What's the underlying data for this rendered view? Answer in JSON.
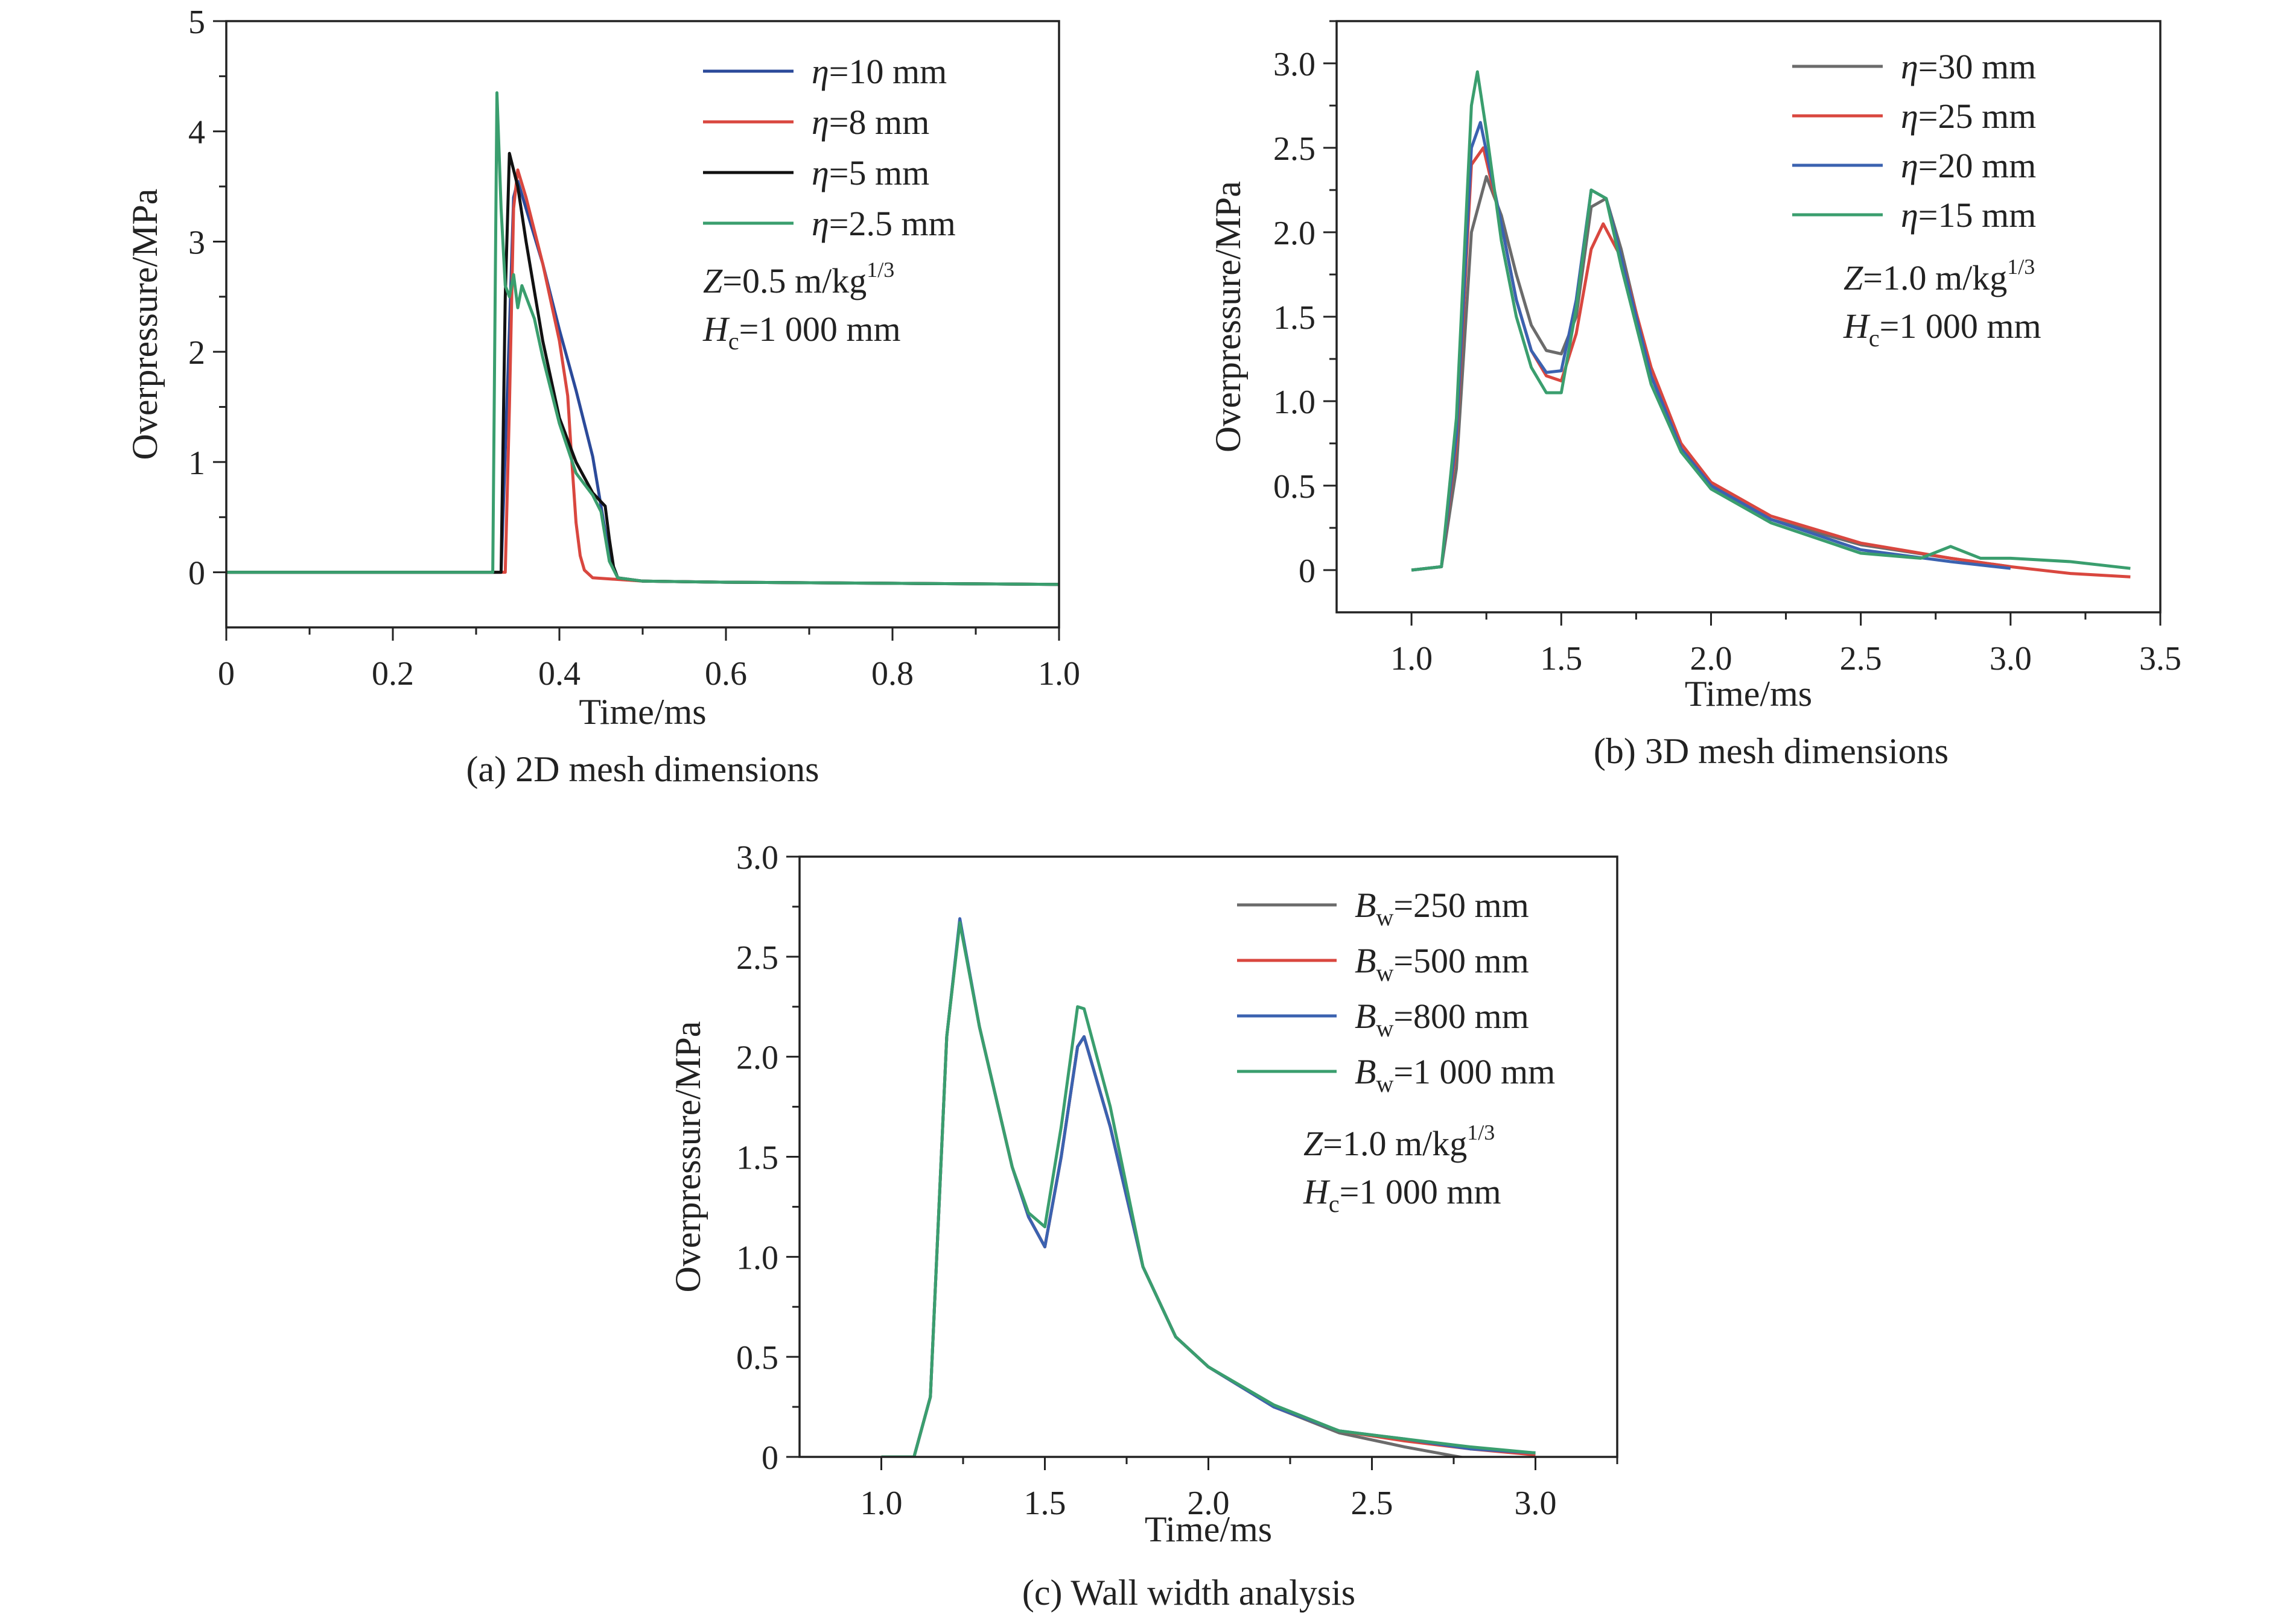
{
  "chart_data": [
    {
      "type": "line",
      "caption": "(a) 2D mesh dimensions",
      "xlabel": "Time/ms",
      "ylabel": "Overpressure/MPa",
      "xlim": [
        0,
        1.0
      ],
      "ylim": [
        -0.5,
        5
      ],
      "xticks": [
        0,
        0.2,
        0.4,
        0.6,
        0.8,
        1.0
      ],
      "xtick_labels": [
        "0",
        "0.2",
        "0.4",
        "0.6",
        "0.8",
        "1.0"
      ],
      "yticks": [
        0,
        1,
        2,
        3,
        4,
        5
      ],
      "ytick_labels": [
        "0",
        "1",
        "2",
        "3",
        "4",
        "5"
      ],
      "legend_position": "top-right",
      "annotations": [
        {
          "var": "Z",
          "sub": "",
          "text": "=0.5 m/kg",
          "sup": "1/3"
        },
        {
          "var": "H",
          "sub": "c",
          "text": "=1 000 mm",
          "sup": ""
        }
      ],
      "series": [
        {
          "var": "η",
          "sub": "",
          "label": "=10 mm",
          "color": "#2b4a9a",
          "x": [
            0,
            0.3,
            0.33,
            0.34,
            0.345,
            0.35,
            0.36,
            0.38,
            0.4,
            0.42,
            0.43,
            0.44,
            0.45,
            0.46,
            0.47,
            0.5,
            0.6,
            0.8,
            1.0
          ],
          "y": [
            0,
            0,
            0,
            2.2,
            3.4,
            3.55,
            3.3,
            2.8,
            2.2,
            1.65,
            1.35,
            1.05,
            0.6,
            0.15,
            -0.05,
            -0.08,
            -0.09,
            -0.1,
            -0.11
          ]
        },
        {
          "var": "η",
          "sub": "",
          "label": "=8 mm",
          "color": "#d9473f",
          "x": [
            0,
            0.3,
            0.335,
            0.34,
            0.345,
            0.35,
            0.36,
            0.38,
            0.4,
            0.41,
            0.415,
            0.42,
            0.425,
            0.43,
            0.44,
            0.5,
            0.6,
            0.8,
            1.0
          ],
          "y": [
            0,
            0,
            0,
            1.5,
            3.3,
            3.65,
            3.4,
            2.8,
            2.1,
            1.6,
            1.0,
            0.45,
            0.15,
            0.02,
            -0.05,
            -0.08,
            -0.09,
            -0.1,
            -0.11
          ]
        },
        {
          "var": "η",
          "sub": "",
          "label": "=5 mm",
          "color": "#111111",
          "x": [
            0,
            0.3,
            0.33,
            0.335,
            0.34,
            0.35,
            0.36,
            0.38,
            0.4,
            0.42,
            0.44,
            0.455,
            0.46,
            0.465,
            0.47,
            0.5,
            0.6,
            0.8,
            1.0
          ],
          "y": [
            0,
            0,
            0,
            2.5,
            3.8,
            3.5,
            3.0,
            2.1,
            1.4,
            1.0,
            0.72,
            0.6,
            0.3,
            0.05,
            -0.05,
            -0.08,
            -0.09,
            -0.1,
            -0.11
          ]
        },
        {
          "var": "η",
          "sub": "",
          "label": "=2.5 mm",
          "color": "#3a9e6e",
          "x": [
            0,
            0.3,
            0.32,
            0.325,
            0.33,
            0.335,
            0.34,
            0.345,
            0.35,
            0.355,
            0.36,
            0.37,
            0.38,
            0.4,
            0.42,
            0.44,
            0.45,
            0.46,
            0.47,
            0.5,
            0.6,
            0.8,
            1.0
          ],
          "y": [
            0,
            0,
            0,
            4.35,
            3.3,
            2.6,
            2.5,
            2.7,
            2.4,
            2.6,
            2.5,
            2.3,
            1.95,
            1.35,
            0.9,
            0.7,
            0.55,
            0.1,
            -0.05,
            -0.08,
            -0.09,
            -0.1,
            -0.11
          ]
        }
      ]
    },
    {
      "type": "line",
      "caption": "(b) 3D mesh dimensions",
      "xlabel": "Time/ms",
      "ylabel": "Overpressure/MPa",
      "xlim": [
        0.75,
        3.5
      ],
      "ylim": [
        -0.25,
        3.25
      ],
      "xticks": [
        1.0,
        1.5,
        2.0,
        2.5,
        3.0,
        3.5
      ],
      "xtick_labels": [
        "1.0",
        "1.5",
        "2.0",
        "2.5",
        "3.0",
        "3.5"
      ],
      "yticks": [
        0,
        0.5,
        1.0,
        1.5,
        2.0,
        2.5,
        3.0
      ],
      "ytick_labels": [
        "0",
        "0.5",
        "1.0",
        "1.5",
        "2.0",
        "2.5",
        "3.0"
      ],
      "legend_position": "top-right",
      "annotations": [
        {
          "var": "Z",
          "sub": "",
          "text": "=1.0 m/kg",
          "sup": "1/3"
        },
        {
          "var": "H",
          "sub": "c",
          "text": "=1 000 mm",
          "sup": ""
        }
      ],
      "series": [
        {
          "var": "η",
          "sub": "",
          "label": "=30 mm",
          "color": "#6b6b6b",
          "x": [
            1.0,
            1.1,
            1.15,
            1.2,
            1.25,
            1.3,
            1.35,
            1.4,
            1.45,
            1.5,
            1.55,
            1.6,
            1.65,
            1.7,
            1.8,
            1.9,
            2.0,
            2.2,
            2.5,
            2.8,
            3.0
          ],
          "y": [
            0,
            0.02,
            0.6,
            2.0,
            2.33,
            2.1,
            1.75,
            1.45,
            1.3,
            1.28,
            1.5,
            2.15,
            2.2,
            1.9,
            1.15,
            0.72,
            0.5,
            0.3,
            0.15,
            0.07,
            0.02
          ]
        },
        {
          "var": "η",
          "sub": "",
          "label": "=25 mm",
          "color": "#d9473f",
          "x": [
            1.0,
            1.1,
            1.15,
            1.2,
            1.24,
            1.3,
            1.35,
            1.4,
            1.45,
            1.5,
            1.55,
            1.6,
            1.64,
            1.7,
            1.8,
            1.9,
            2.0,
            2.2,
            2.5,
            2.8,
            3.0,
            3.2,
            3.4
          ],
          "y": [
            0,
            0.02,
            0.75,
            2.4,
            2.5,
            2.05,
            1.6,
            1.3,
            1.15,
            1.12,
            1.4,
            1.9,
            2.05,
            1.85,
            1.2,
            0.75,
            0.52,
            0.32,
            0.16,
            0.07,
            0.02,
            -0.02,
            -0.04
          ]
        },
        {
          "var": "η",
          "sub": "",
          "label": "=20 mm",
          "color": "#3b62b0",
          "x": [
            1.0,
            1.1,
            1.15,
            1.2,
            1.23,
            1.3,
            1.35,
            1.4,
            1.45,
            1.5,
            1.55,
            1.6,
            1.65,
            1.7,
            1.8,
            1.9,
            2.0,
            2.2,
            2.5,
            2.8,
            3.0
          ],
          "y": [
            0,
            0.02,
            0.8,
            2.5,
            2.65,
            2.05,
            1.6,
            1.3,
            1.17,
            1.18,
            1.6,
            2.25,
            2.2,
            1.85,
            1.15,
            0.72,
            0.5,
            0.3,
            0.12,
            0.05,
            0.01
          ]
        },
        {
          "var": "η",
          "sub": "",
          "label": "=15 mm",
          "color": "#3a9e6e",
          "x": [
            1.0,
            1.1,
            1.15,
            1.2,
            1.22,
            1.25,
            1.3,
            1.35,
            1.4,
            1.45,
            1.5,
            1.55,
            1.6,
            1.65,
            1.7,
            1.8,
            1.9,
            2.0,
            2.2,
            2.5,
            2.7,
            2.8,
            2.9,
            3.0,
            3.2,
            3.4
          ],
          "y": [
            0,
            0.02,
            0.9,
            2.75,
            2.95,
            2.6,
            1.95,
            1.5,
            1.2,
            1.05,
            1.05,
            1.55,
            2.25,
            2.2,
            1.8,
            1.1,
            0.7,
            0.48,
            0.28,
            0.1,
            0.07,
            0.14,
            0.07,
            0.07,
            0.05,
            0.01
          ]
        }
      ]
    },
    {
      "type": "line",
      "caption": "(c) Wall width analysis",
      "xlabel": "Time/ms",
      "ylabel": "Overpressure/MPa",
      "xlim": [
        0.75,
        3.25
      ],
      "ylim": [
        0,
        3.0
      ],
      "xticks": [
        1.0,
        1.5,
        2.0,
        2.5,
        3.0
      ],
      "xtick_labels": [
        "1.0",
        "1.5",
        "2.0",
        "2.5",
        "3.0"
      ],
      "yticks": [
        0,
        0.5,
        1.0,
        1.5,
        2.0,
        2.5,
        3.0
      ],
      "ytick_labels": [
        "0",
        "0.5",
        "1.0",
        "1.5",
        "2.0",
        "2.5",
        "3.0"
      ],
      "legend_position": "top-right",
      "annotations": [
        {
          "var": "Z",
          "sub": "",
          "text": "=1.0 m/kg",
          "sup": "1/3"
        },
        {
          "var": "H",
          "sub": "c",
          "text": "=1 000 mm",
          "sup": ""
        }
      ],
      "series": [
        {
          "var": "B",
          "sub": "w",
          "label": "=250 mm",
          "color": "#6b6b6b",
          "x": [
            1.0,
            1.1,
            1.15,
            1.2,
            1.24,
            1.3,
            1.35,
            1.4,
            1.45,
            1.5,
            1.55,
            1.6,
            1.62,
            1.7,
            1.8,
            1.9,
            2.0,
            2.2,
            2.4,
            2.6,
            2.8,
            3.0
          ],
          "y": [
            0,
            0,
            0.3,
            2.1,
            2.68,
            2.15,
            1.8,
            1.45,
            1.2,
            1.05,
            1.5,
            2.05,
            2.1,
            1.65,
            0.95,
            0.6,
            0.45,
            0.25,
            0.12,
            0.05,
            -0.01,
            -0.04
          ]
        },
        {
          "var": "B",
          "sub": "w",
          "label": "=500 mm",
          "color": "#d9473f",
          "x": [
            1.0,
            1.1,
            1.15,
            1.2,
            1.24,
            1.3,
            1.35,
            1.4,
            1.45,
            1.5,
            1.55,
            1.6,
            1.62,
            1.7,
            1.8,
            1.9,
            2.0,
            2.2,
            2.4,
            2.6,
            2.8,
            3.0
          ],
          "y": [
            0,
            0,
            0.3,
            2.1,
            2.68,
            2.15,
            1.8,
            1.45,
            1.2,
            1.05,
            1.5,
            2.05,
            2.1,
            1.65,
            0.95,
            0.6,
            0.45,
            0.25,
            0.13,
            0.08,
            0.04,
            0.01
          ]
        },
        {
          "var": "B",
          "sub": "w",
          "label": "=800 mm",
          "color": "#3b62b0",
          "x": [
            1.0,
            1.1,
            1.15,
            1.2,
            1.24,
            1.3,
            1.35,
            1.4,
            1.45,
            1.5,
            1.55,
            1.6,
            1.62,
            1.7,
            1.8,
            1.9,
            2.0,
            2.2,
            2.4,
            2.6,
            2.8,
            3.0
          ],
          "y": [
            0,
            0,
            0.3,
            2.1,
            2.69,
            2.15,
            1.8,
            1.45,
            1.2,
            1.05,
            1.5,
            2.05,
            2.1,
            1.65,
            0.95,
            0.6,
            0.45,
            0.25,
            0.13,
            0.09,
            0.04,
            0.02
          ]
        },
        {
          "var": "B",
          "sub": "w",
          "label": "=1 000 mm",
          "color": "#3a9e6e",
          "x": [
            1.0,
            1.1,
            1.15,
            1.2,
            1.24,
            1.3,
            1.35,
            1.4,
            1.45,
            1.5,
            1.55,
            1.6,
            1.62,
            1.7,
            1.8,
            1.9,
            2.0,
            2.2,
            2.4,
            2.6,
            2.8,
            3.0
          ],
          "y": [
            0,
            0,
            0.3,
            2.1,
            2.67,
            2.15,
            1.8,
            1.45,
            1.22,
            1.15,
            1.65,
            2.25,
            2.24,
            1.75,
            0.95,
            0.6,
            0.45,
            0.26,
            0.13,
            0.09,
            0.05,
            0.02
          ]
        }
      ]
    }
  ]
}
